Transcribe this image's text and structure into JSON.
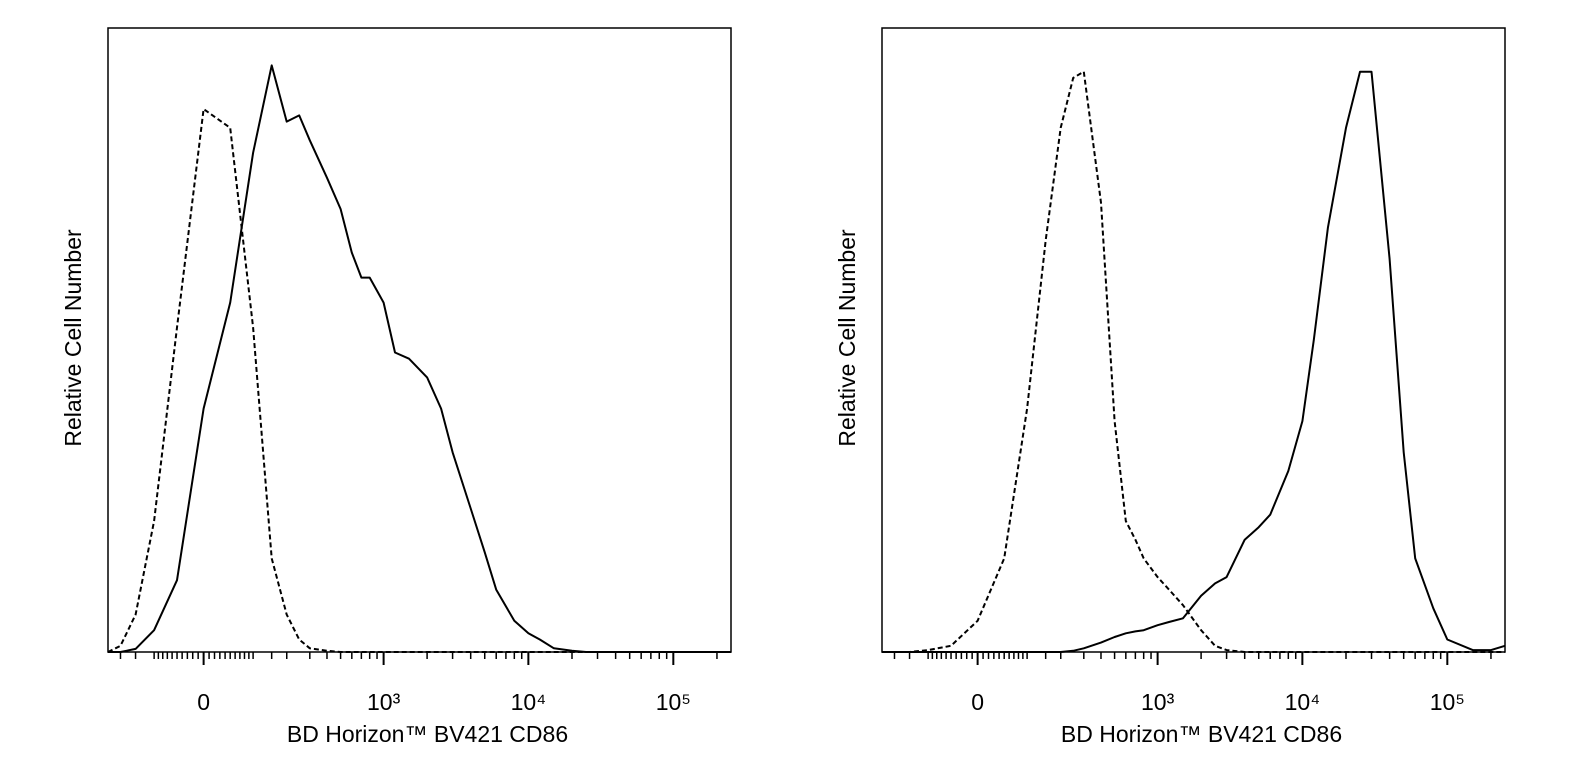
{
  "chart_data": [
    {
      "type": "line",
      "xlabel": "BD Horizon™ BV421 CD86",
      "ylabel": "Relative Cell Number",
      "xscale": "asinh",
      "linear_width": 115,
      "xlim": [
        -250,
        250000
      ],
      "ylim": [
        0,
        100
      ],
      "xticks": [
        0,
        {
          "value": 1000,
          "label": "10³"
        },
        {
          "value": 10000,
          "label": "10⁴"
        },
        {
          "value": 100000,
          "label": "10⁵"
        }
      ],
      "xminorticks": [
        -200,
        -150,
        -100,
        -90,
        -80,
        -70,
        -60,
        -50,
        -40,
        -30,
        -20,
        -10,
        10,
        20,
        30,
        40,
        50,
        60,
        70,
        80,
        90,
        100,
        150,
        200,
        300,
        400,
        500,
        600,
        700,
        800,
        900,
        2000,
        3000,
        4000,
        5000,
        6000,
        7000,
        8000,
        9000,
        20000,
        30000,
        40000,
        50000,
        60000,
        70000,
        80000,
        90000,
        200000
      ],
      "x": [
        -250,
        -200,
        -150,
        -100,
        -50,
        0,
        50,
        100,
        150,
        200,
        250,
        300,
        400,
        500,
        600,
        700,
        800,
        1000,
        1200,
        1500,
        2000,
        2500,
        3000,
        4000,
        5000,
        6000,
        8000,
        10000,
        12000,
        15000,
        20000,
        25000,
        30000,
        40000,
        50000,
        60000,
        80000,
        100000,
        150000,
        200000,
        250000
      ],
      "series": [
        {
          "color": "#000000",
          "linestyle": "dashed",
          "values": [
            0,
            1,
            6,
            21,
            52,
            87,
            84,
            52,
            15,
            6,
            2,
            0.6,
            0.2,
            0,
            0,
            0,
            0,
            0,
            0,
            0,
            0,
            0,
            0,
            0,
            0,
            0,
            0,
            0,
            0,
            0,
            0,
            0,
            0,
            0,
            0,
            0,
            0,
            0,
            0,
            0,
            0
          ]
        },
        {
          "color": "#000000",
          "linestyle": "solid",
          "values": [
            0,
            0,
            0.5,
            3.5,
            11.5,
            39,
            56,
            80,
            94,
            85,
            86,
            82,
            76,
            71,
            64,
            60,
            60,
            56,
            48,
            47,
            44,
            39,
            32,
            23,
            16,
            10,
            5,
            3,
            2,
            0.6,
            0.2,
            0,
            0,
            0,
            0,
            0,
            0,
            0,
            0,
            0,
            0
          ]
        }
      ]
    },
    {
      "type": "line",
      "xlabel": "BD Horizon™ BV421 CD86",
      "ylabel": "Relative Cell Number",
      "xscale": "asinh",
      "linear_width": 115,
      "xlim": [
        -250,
        250000
      ],
      "ylim": [
        0,
        100
      ],
      "xticks": [
        0,
        {
          "value": 1000,
          "label": "10³"
        },
        {
          "value": 10000,
          "label": "10⁴"
        },
        {
          "value": 100000,
          "label": "10⁵"
        }
      ],
      "xminorticks": [
        -200,
        -150,
        -100,
        -90,
        -80,
        -70,
        -60,
        -50,
        -40,
        -30,
        -20,
        -10,
        10,
        20,
        30,
        40,
        50,
        60,
        70,
        80,
        90,
        100,
        150,
        200,
        300,
        400,
        500,
        600,
        700,
        800,
        900,
        2000,
        3000,
        4000,
        5000,
        6000,
        7000,
        8000,
        9000,
        20000,
        30000,
        40000,
        50000,
        60000,
        70000,
        80000,
        90000,
        200000
      ],
      "x": [
        -250,
        -200,
        -150,
        -100,
        -50,
        0,
        50,
        100,
        150,
        200,
        250,
        300,
        400,
        500,
        600,
        700,
        800,
        1000,
        1200,
        1500,
        2000,
        2500,
        3000,
        4000,
        5000,
        6000,
        8000,
        10000,
        12000,
        15000,
        20000,
        25000,
        30000,
        40000,
        50000,
        60000,
        80000,
        100000,
        150000,
        200000,
        250000
      ],
      "series": [
        {
          "color": "#000000",
          "linestyle": "dashed",
          "values": [
            0,
            0,
            0,
            0.3,
            1,
            5,
            15,
            39,
            66,
            84,
            92,
            93,
            72,
            37,
            21,
            18,
            15,
            12,
            10,
            7.5,
            3.5,
            1,
            0.3,
            0,
            0,
            0,
            0,
            0,
            0,
            0,
            0,
            0,
            0,
            0,
            0,
            0,
            0,
            0,
            0,
            0,
            0
          ]
        },
        {
          "color": "#000000",
          "linestyle": "solid",
          "values": [
            0,
            0,
            0,
            0,
            0,
            0,
            0,
            0,
            0,
            0,
            0.2,
            0.6,
            1.5,
            2.4,
            3,
            3.3,
            3.5,
            4.3,
            4.8,
            5.4,
            9,
            11,
            12,
            18,
            20,
            22,
            29,
            37,
            50,
            68,
            84,
            93,
            93,
            63,
            32,
            15,
            7,
            2,
            0.3,
            0.3,
            1
          ]
        }
      ]
    }
  ]
}
